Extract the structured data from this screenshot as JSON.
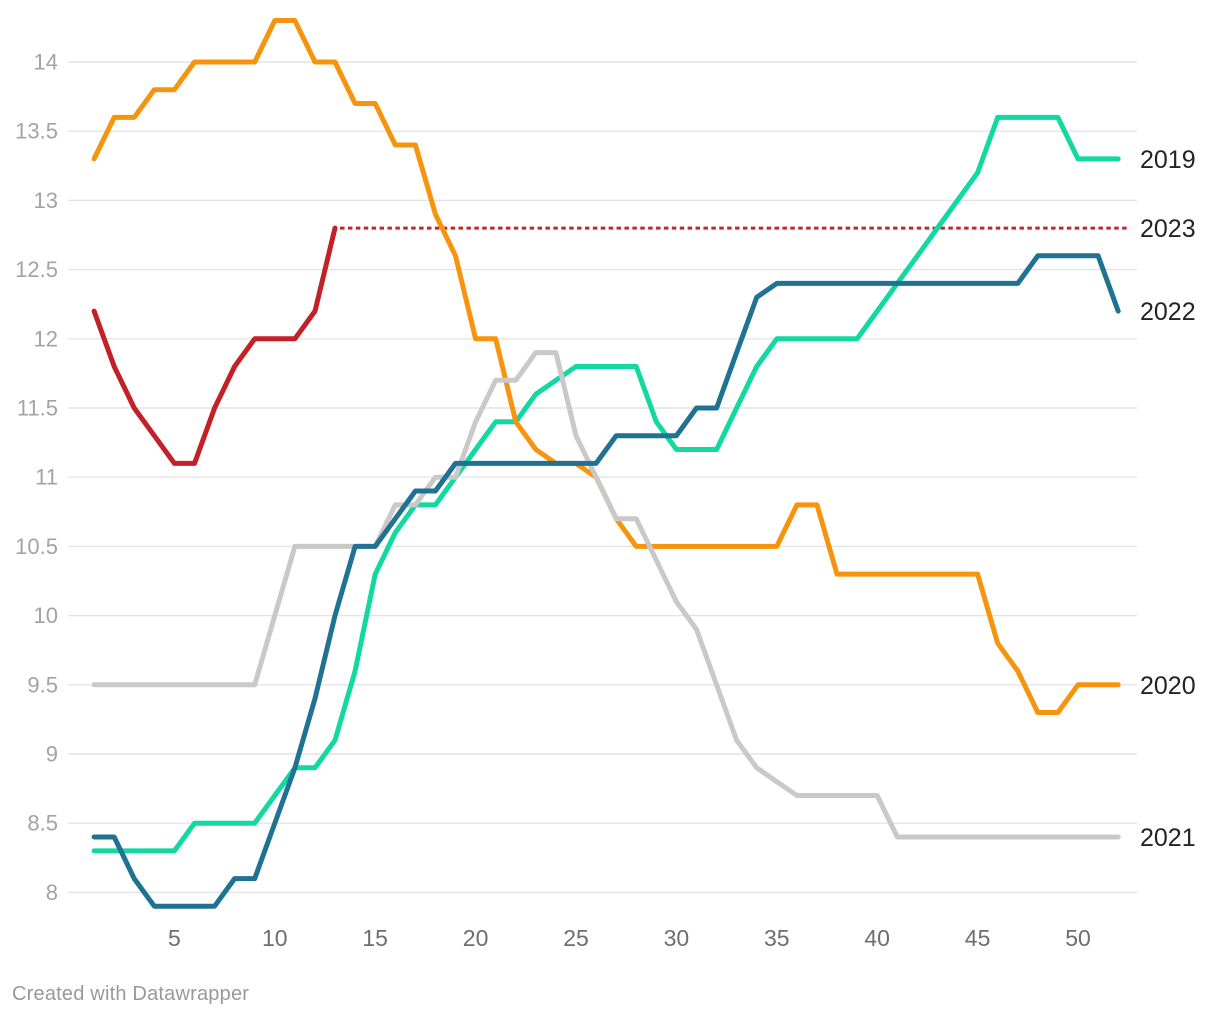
{
  "footer": "Created with Datawrapper",
  "chart_data": {
    "type": "line",
    "x_unit": "week",
    "x_range": [
      1,
      52
    ],
    "y_range": [
      7.9,
      14.3
    ],
    "x_ticks": [
      5,
      10,
      15,
      20,
      25,
      30,
      35,
      40,
      45,
      50
    ],
    "y_ticks": [
      8,
      8.5,
      9,
      9.5,
      10,
      10.5,
      11,
      11.5,
      12,
      12.5,
      13,
      13.5,
      14
    ],
    "grid": true,
    "grid_color": "#e4e4e4",
    "legend_position": "right-edge-labels",
    "series": [
      {
        "name": "2019",
        "color": "#12d8a2",
        "style": "solid",
        "label_value": 13.3,
        "values": [
          8.3,
          8.3,
          8.3,
          8.3,
          8.3,
          8.5,
          8.5,
          8.5,
          8.5,
          8.7,
          8.9,
          8.9,
          9.1,
          9.6,
          10.3,
          10.6,
          10.8,
          10.8,
          11.0,
          11.2,
          11.4,
          11.4,
          11.6,
          11.7,
          11.8,
          11.8,
          11.8,
          11.8,
          11.4,
          11.2,
          11.2,
          11.2,
          11.5,
          11.8,
          12.0,
          12.0,
          12.0,
          12.0,
          12.0,
          12.2,
          12.4,
          12.6,
          12.8,
          13.0,
          13.2,
          13.6,
          13.6,
          13.6,
          13.6,
          13.3,
          13.3,
          13.3
        ]
      },
      {
        "name": "2020",
        "color": "#f7940d",
        "style": "solid",
        "label_value": 9.5,
        "values": [
          13.3,
          13.6,
          13.6,
          13.8,
          13.8,
          14.0,
          14.0,
          14.0,
          14.0,
          14.3,
          14.3,
          14.0,
          14.0,
          13.7,
          13.7,
          13.4,
          13.4,
          12.9,
          12.6,
          12.0,
          12.0,
          11.4,
          11.2,
          11.1,
          11.1,
          11.0,
          10.7,
          10.5,
          10.5,
          10.5,
          10.5,
          10.5,
          10.5,
          10.5,
          10.5,
          10.8,
          10.8,
          10.3,
          10.3,
          10.3,
          10.3,
          10.3,
          10.3,
          10.3,
          10.3,
          9.8,
          9.6,
          9.3,
          9.3,
          9.5,
          9.5,
          9.5
        ]
      },
      {
        "name": "2021",
        "color": "#c9c9c9",
        "style": "solid",
        "label_value": 8.4,
        "values": [
          9.5,
          9.5,
          9.5,
          9.5,
          9.5,
          9.5,
          9.5,
          9.5,
          9.5,
          10.0,
          10.5,
          10.5,
          10.5,
          10.5,
          10.5,
          10.8,
          10.8,
          11.0,
          11.0,
          11.4,
          11.7,
          11.7,
          11.9,
          11.9,
          11.3,
          11.0,
          10.7,
          10.7,
          10.4,
          10.1,
          9.9,
          9.5,
          9.1,
          8.9,
          8.8,
          8.7,
          8.7,
          8.7,
          8.7,
          8.7,
          8.4,
          8.4,
          8.4,
          8.4,
          8.4,
          8.4,
          8.4,
          8.4,
          8.4,
          8.4,
          8.4,
          8.4
        ]
      },
      {
        "name": "2022",
        "color": "#1f7291",
        "style": "solid",
        "label_value": 12.2,
        "values": [
          8.4,
          8.4,
          8.1,
          7.9,
          7.9,
          7.9,
          7.9,
          8.1,
          8.1,
          8.5,
          8.9,
          9.4,
          10.0,
          10.5,
          10.5,
          10.7,
          10.9,
          10.9,
          11.1,
          11.1,
          11.1,
          11.1,
          11.1,
          11.1,
          11.1,
          11.1,
          11.3,
          11.3,
          11.3,
          11.3,
          11.5,
          11.5,
          11.9,
          12.3,
          12.4,
          12.4,
          12.4,
          12.4,
          12.4,
          12.4,
          12.4,
          12.4,
          12.4,
          12.4,
          12.4,
          12.4,
          12.4,
          12.6,
          12.6,
          12.6,
          12.6,
          12.2
        ]
      },
      {
        "name": "2023",
        "color": "#c32127",
        "style": "solid",
        "label_value": 12.8,
        "start_week": 1,
        "values": [
          12.2,
          11.8,
          11.5,
          11.3,
          11.1,
          11.1,
          11.5,
          11.8,
          12.0,
          12.0,
          12.0,
          12.2,
          12.8
        ]
      }
    ],
    "projection": {
      "series": "2023",
      "style": "dashed",
      "color": "#c3272b",
      "value": 12.8,
      "from_week": 13,
      "to_week": 52.5
    }
  }
}
